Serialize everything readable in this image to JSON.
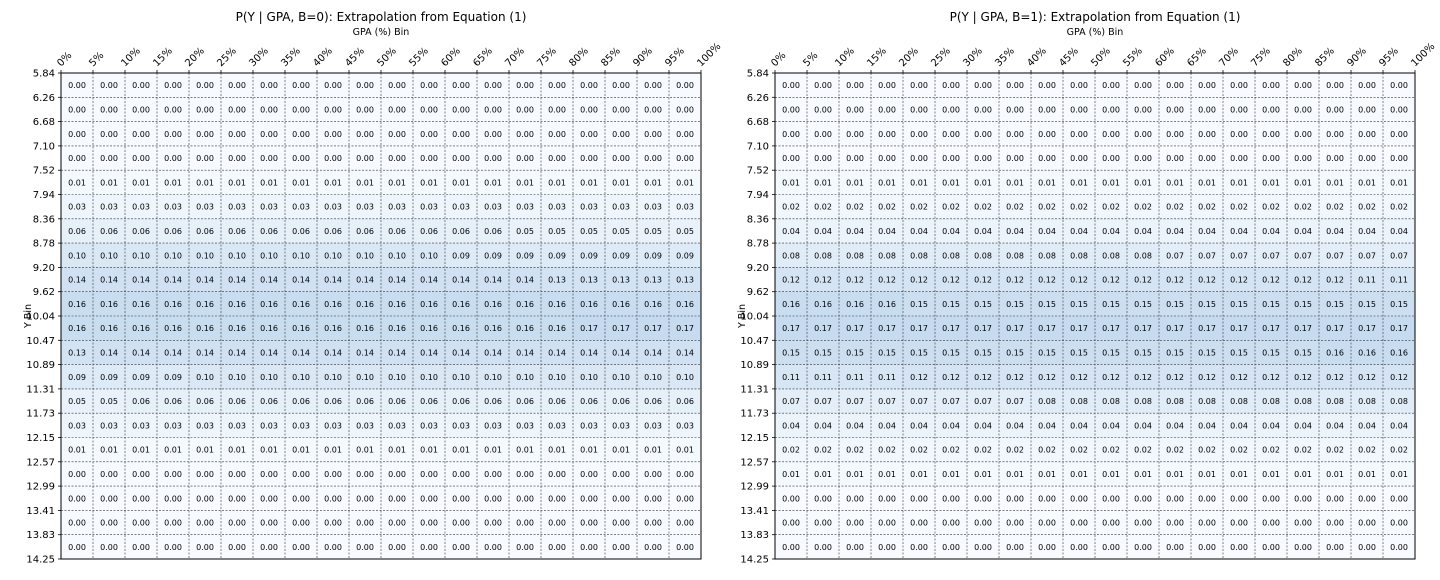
{
  "chart_data": [
    {
      "type": "heatmap",
      "title": "P(Y | GPA, B=0): Extrapolation from Equation (1)",
      "xlabel": "GPA (%) Bin",
      "ylabel": "Y Bin",
      "x_ticks": [
        "0%",
        "5%",
        "10%",
        "15%",
        "20%",
        "25%",
        "30%",
        "35%",
        "40%",
        "45%",
        "50%",
        "55%",
        "60%",
        "65%",
        "70%",
        "75%",
        "80%",
        "85%",
        "90%",
        "95%",
        "100%"
      ],
      "y_ticks": [
        "5.84",
        "6.26",
        "6.68",
        "7.10",
        "7.52",
        "7.94",
        "8.36",
        "8.78",
        "9.20",
        "9.62",
        "10.04",
        "10.47",
        "10.89",
        "11.31",
        "11.73",
        "12.15",
        "12.57",
        "12.99",
        "13.41",
        "13.83",
        "14.25"
      ],
      "grid": true,
      "colormap": "Blues",
      "values": [
        [
          "0.00",
          "0.00",
          "0.00",
          "0.00",
          "0.00",
          "0.00",
          "0.00",
          "0.00",
          "0.00",
          "0.00",
          "0.00",
          "0.00",
          "0.00",
          "0.00",
          "0.00",
          "0.00",
          "0.00",
          "0.00",
          "0.00",
          "0.00"
        ],
        [
          "0.00",
          "0.00",
          "0.00",
          "0.00",
          "0.00",
          "0.00",
          "0.00",
          "0.00",
          "0.00",
          "0.00",
          "0.00",
          "0.00",
          "0.00",
          "0.00",
          "0.00",
          "0.00",
          "0.00",
          "0.00",
          "0.00",
          "0.00"
        ],
        [
          "0.00",
          "0.00",
          "0.00",
          "0.00",
          "0.00",
          "0.00",
          "0.00",
          "0.00",
          "0.00",
          "0.00",
          "0.00",
          "0.00",
          "0.00",
          "0.00",
          "0.00",
          "0.00",
          "0.00",
          "0.00",
          "0.00",
          "0.00"
        ],
        [
          "0.00",
          "0.00",
          "0.00",
          "0.00",
          "0.00",
          "0.00",
          "0.00",
          "0.00",
          "0.00",
          "0.00",
          "0.00",
          "0.00",
          "0.00",
          "0.00",
          "0.00",
          "0.00",
          "0.00",
          "0.00",
          "0.00",
          "0.00"
        ],
        [
          "0.01",
          "0.01",
          "0.01",
          "0.01",
          "0.01",
          "0.01",
          "0.01",
          "0.01",
          "0.01",
          "0.01",
          "0.01",
          "0.01",
          "0.01",
          "0.01",
          "0.01",
          "0.01",
          "0.01",
          "0.01",
          "0.01",
          "0.01"
        ],
        [
          "0.03",
          "0.03",
          "0.03",
          "0.03",
          "0.03",
          "0.03",
          "0.03",
          "0.03",
          "0.03",
          "0.03",
          "0.03",
          "0.03",
          "0.03",
          "0.03",
          "0.03",
          "0.03",
          "0.03",
          "0.03",
          "0.03",
          "0.03"
        ],
        [
          "0.06",
          "0.06",
          "0.06",
          "0.06",
          "0.06",
          "0.06",
          "0.06",
          "0.06",
          "0.06",
          "0.06",
          "0.06",
          "0.06",
          "0.06",
          "0.06",
          "0.05",
          "0.05",
          "0.05",
          "0.05",
          "0.05",
          "0.05"
        ],
        [
          "0.10",
          "0.10",
          "0.10",
          "0.10",
          "0.10",
          "0.10",
          "0.10",
          "0.10",
          "0.10",
          "0.10",
          "0.10",
          "0.10",
          "0.09",
          "0.09",
          "0.09",
          "0.09",
          "0.09",
          "0.09",
          "0.09",
          "0.09"
        ],
        [
          "0.14",
          "0.14",
          "0.14",
          "0.14",
          "0.14",
          "0.14",
          "0.14",
          "0.14",
          "0.14",
          "0.14",
          "0.14",
          "0.14",
          "0.14",
          "0.14",
          "0.14",
          "0.13",
          "0.13",
          "0.13",
          "0.13",
          "0.13"
        ],
        [
          "0.16",
          "0.16",
          "0.16",
          "0.16",
          "0.16",
          "0.16",
          "0.16",
          "0.16",
          "0.16",
          "0.16",
          "0.16",
          "0.16",
          "0.16",
          "0.16",
          "0.16",
          "0.16",
          "0.16",
          "0.16",
          "0.16",
          "0.16"
        ],
        [
          "0.16",
          "0.16",
          "0.16",
          "0.16",
          "0.16",
          "0.16",
          "0.16",
          "0.16",
          "0.16",
          "0.16",
          "0.16",
          "0.16",
          "0.16",
          "0.16",
          "0.16",
          "0.16",
          "0.17",
          "0.17",
          "0.17",
          "0.17"
        ],
        [
          "0.13",
          "0.14",
          "0.14",
          "0.14",
          "0.14",
          "0.14",
          "0.14",
          "0.14",
          "0.14",
          "0.14",
          "0.14",
          "0.14",
          "0.14",
          "0.14",
          "0.14",
          "0.14",
          "0.14",
          "0.14",
          "0.14",
          "0.14"
        ],
        [
          "0.09",
          "0.09",
          "0.09",
          "0.09",
          "0.10",
          "0.10",
          "0.10",
          "0.10",
          "0.10",
          "0.10",
          "0.10",
          "0.10",
          "0.10",
          "0.10",
          "0.10",
          "0.10",
          "0.10",
          "0.10",
          "0.10",
          "0.10"
        ],
        [
          "0.05",
          "0.05",
          "0.06",
          "0.06",
          "0.06",
          "0.06",
          "0.06",
          "0.06",
          "0.06",
          "0.06",
          "0.06",
          "0.06",
          "0.06",
          "0.06",
          "0.06",
          "0.06",
          "0.06",
          "0.06",
          "0.06",
          "0.06"
        ],
        [
          "0.03",
          "0.03",
          "0.03",
          "0.03",
          "0.03",
          "0.03",
          "0.03",
          "0.03",
          "0.03",
          "0.03",
          "0.03",
          "0.03",
          "0.03",
          "0.03",
          "0.03",
          "0.03",
          "0.03",
          "0.03",
          "0.03",
          "0.03"
        ],
        [
          "0.01",
          "0.01",
          "0.01",
          "0.01",
          "0.01",
          "0.01",
          "0.01",
          "0.01",
          "0.01",
          "0.01",
          "0.01",
          "0.01",
          "0.01",
          "0.01",
          "0.01",
          "0.01",
          "0.01",
          "0.01",
          "0.01",
          "0.01"
        ],
        [
          "0.00",
          "0.00",
          "0.00",
          "0.00",
          "0.00",
          "0.00",
          "0.00",
          "0.00",
          "0.00",
          "0.00",
          "0.00",
          "0.00",
          "0.00",
          "0.00",
          "0.00",
          "0.00",
          "0.00",
          "0.00",
          "0.00",
          "0.00"
        ],
        [
          "0.00",
          "0.00",
          "0.00",
          "0.00",
          "0.00",
          "0.00",
          "0.00",
          "0.00",
          "0.00",
          "0.00",
          "0.00",
          "0.00",
          "0.00",
          "0.00",
          "0.00",
          "0.00",
          "0.00",
          "0.00",
          "0.00",
          "0.00"
        ],
        [
          "0.00",
          "0.00",
          "0.00",
          "0.00",
          "0.00",
          "0.00",
          "0.00",
          "0.00",
          "0.00",
          "0.00",
          "0.00",
          "0.00",
          "0.00",
          "0.00",
          "0.00",
          "0.00",
          "0.00",
          "0.00",
          "0.00",
          "0.00"
        ],
        [
          "0.00",
          "0.00",
          "0.00",
          "0.00",
          "0.00",
          "0.00",
          "0.00",
          "0.00",
          "0.00",
          "0.00",
          "0.00",
          "0.00",
          "0.00",
          "0.00",
          "0.00",
          "0.00",
          "0.00",
          "0.00",
          "0.00",
          "0.00"
        ]
      ]
    },
    {
      "type": "heatmap",
      "title": "P(Y | GPA, B=1): Extrapolation from Equation (1)",
      "xlabel": "GPA (%) Bin",
      "ylabel": "Y Bin",
      "x_ticks": [
        "0%",
        "5%",
        "10%",
        "15%",
        "20%",
        "25%",
        "30%",
        "35%",
        "40%",
        "45%",
        "50%",
        "55%",
        "60%",
        "65%",
        "70%",
        "75%",
        "80%",
        "85%",
        "90%",
        "95%",
        "100%"
      ],
      "y_ticks": [
        "5.84",
        "6.26",
        "6.68",
        "7.10",
        "7.52",
        "7.94",
        "8.36",
        "8.78",
        "9.20",
        "9.62",
        "10.04",
        "10.47",
        "10.89",
        "11.31",
        "11.73",
        "12.15",
        "12.57",
        "12.99",
        "13.41",
        "13.83",
        "14.25"
      ],
      "grid": true,
      "colormap": "Blues",
      "values": [
        [
          "0.00",
          "0.00",
          "0.00",
          "0.00",
          "0.00",
          "0.00",
          "0.00",
          "0.00",
          "0.00",
          "0.00",
          "0.00",
          "0.00",
          "0.00",
          "0.00",
          "0.00",
          "0.00",
          "0.00",
          "0.00",
          "0.00",
          "0.00"
        ],
        [
          "0.00",
          "0.00",
          "0.00",
          "0.00",
          "0.00",
          "0.00",
          "0.00",
          "0.00",
          "0.00",
          "0.00",
          "0.00",
          "0.00",
          "0.00",
          "0.00",
          "0.00",
          "0.00",
          "0.00",
          "0.00",
          "0.00",
          "0.00"
        ],
        [
          "0.00",
          "0.00",
          "0.00",
          "0.00",
          "0.00",
          "0.00",
          "0.00",
          "0.00",
          "0.00",
          "0.00",
          "0.00",
          "0.00",
          "0.00",
          "0.00",
          "0.00",
          "0.00",
          "0.00",
          "0.00",
          "0.00",
          "0.00"
        ],
        [
          "0.00",
          "0.00",
          "0.00",
          "0.00",
          "0.00",
          "0.00",
          "0.00",
          "0.00",
          "0.00",
          "0.00",
          "0.00",
          "0.00",
          "0.00",
          "0.00",
          "0.00",
          "0.00",
          "0.00",
          "0.00",
          "0.00",
          "0.00"
        ],
        [
          "0.01",
          "0.01",
          "0.01",
          "0.01",
          "0.01",
          "0.01",
          "0.01",
          "0.01",
          "0.01",
          "0.01",
          "0.01",
          "0.01",
          "0.01",
          "0.01",
          "0.01",
          "0.01",
          "0.01",
          "0.01",
          "0.01",
          "0.01"
        ],
        [
          "0.02",
          "0.02",
          "0.02",
          "0.02",
          "0.02",
          "0.02",
          "0.02",
          "0.02",
          "0.02",
          "0.02",
          "0.02",
          "0.02",
          "0.02",
          "0.02",
          "0.02",
          "0.02",
          "0.02",
          "0.02",
          "0.02",
          "0.02"
        ],
        [
          "0.04",
          "0.04",
          "0.04",
          "0.04",
          "0.04",
          "0.04",
          "0.04",
          "0.04",
          "0.04",
          "0.04",
          "0.04",
          "0.04",
          "0.04",
          "0.04",
          "0.04",
          "0.04",
          "0.04",
          "0.04",
          "0.04",
          "0.04"
        ],
        [
          "0.08",
          "0.08",
          "0.08",
          "0.08",
          "0.08",
          "0.08",
          "0.08",
          "0.08",
          "0.08",
          "0.08",
          "0.08",
          "0.08",
          "0.07",
          "0.07",
          "0.07",
          "0.07",
          "0.07",
          "0.07",
          "0.07",
          "0.07"
        ],
        [
          "0.12",
          "0.12",
          "0.12",
          "0.12",
          "0.12",
          "0.12",
          "0.12",
          "0.12",
          "0.12",
          "0.12",
          "0.12",
          "0.12",
          "0.12",
          "0.12",
          "0.12",
          "0.12",
          "0.12",
          "0.12",
          "0.11",
          "0.11"
        ],
        [
          "0.16",
          "0.16",
          "0.16",
          "0.16",
          "0.15",
          "0.15",
          "0.15",
          "0.15",
          "0.15",
          "0.15",
          "0.15",
          "0.15",
          "0.15",
          "0.15",
          "0.15",
          "0.15",
          "0.15",
          "0.15",
          "0.15",
          "0.15"
        ],
        [
          "0.17",
          "0.17",
          "0.17",
          "0.17",
          "0.17",
          "0.17",
          "0.17",
          "0.17",
          "0.17",
          "0.17",
          "0.17",
          "0.17",
          "0.17",
          "0.17",
          "0.17",
          "0.17",
          "0.17",
          "0.17",
          "0.17",
          "0.17"
        ],
        [
          "0.15",
          "0.15",
          "0.15",
          "0.15",
          "0.15",
          "0.15",
          "0.15",
          "0.15",
          "0.15",
          "0.15",
          "0.15",
          "0.15",
          "0.15",
          "0.15",
          "0.15",
          "0.15",
          "0.15",
          "0.16",
          "0.16",
          "0.16"
        ],
        [
          "0.11",
          "0.11",
          "0.11",
          "0.11",
          "0.12",
          "0.12",
          "0.12",
          "0.12",
          "0.12",
          "0.12",
          "0.12",
          "0.12",
          "0.12",
          "0.12",
          "0.12",
          "0.12",
          "0.12",
          "0.12",
          "0.12",
          "0.12"
        ],
        [
          "0.07",
          "0.07",
          "0.07",
          "0.07",
          "0.07",
          "0.07",
          "0.07",
          "0.07",
          "0.08",
          "0.08",
          "0.08",
          "0.08",
          "0.08",
          "0.08",
          "0.08",
          "0.08",
          "0.08",
          "0.08",
          "0.08",
          "0.08"
        ],
        [
          "0.04",
          "0.04",
          "0.04",
          "0.04",
          "0.04",
          "0.04",
          "0.04",
          "0.04",
          "0.04",
          "0.04",
          "0.04",
          "0.04",
          "0.04",
          "0.04",
          "0.04",
          "0.04",
          "0.04",
          "0.04",
          "0.04",
          "0.04"
        ],
        [
          "0.02",
          "0.02",
          "0.02",
          "0.02",
          "0.02",
          "0.02",
          "0.02",
          "0.02",
          "0.02",
          "0.02",
          "0.02",
          "0.02",
          "0.02",
          "0.02",
          "0.02",
          "0.02",
          "0.02",
          "0.02",
          "0.02",
          "0.02"
        ],
        [
          "0.01",
          "0.01",
          "0.01",
          "0.01",
          "0.01",
          "0.01",
          "0.01",
          "0.01",
          "0.01",
          "0.01",
          "0.01",
          "0.01",
          "0.01",
          "0.01",
          "0.01",
          "0.01",
          "0.01",
          "0.01",
          "0.01",
          "0.01"
        ],
        [
          "0.00",
          "0.00",
          "0.00",
          "0.00",
          "0.00",
          "0.00",
          "0.00",
          "0.00",
          "0.00",
          "0.00",
          "0.00",
          "0.00",
          "0.00",
          "0.00",
          "0.00",
          "0.00",
          "0.00",
          "0.00",
          "0.00",
          "0.00"
        ],
        [
          "0.00",
          "0.00",
          "0.00",
          "0.00",
          "0.00",
          "0.00",
          "0.00",
          "0.00",
          "0.00",
          "0.00",
          "0.00",
          "0.00",
          "0.00",
          "0.00",
          "0.00",
          "0.00",
          "0.00",
          "0.00",
          "0.00",
          "0.00"
        ],
        [
          "0.00",
          "0.00",
          "0.00",
          "0.00",
          "0.00",
          "0.00",
          "0.00",
          "0.00",
          "0.00",
          "0.00",
          "0.00",
          "0.00",
          "0.00",
          "0.00",
          "0.00",
          "0.00",
          "0.00",
          "0.00",
          "0.00",
          "0.00"
        ]
      ]
    }
  ]
}
